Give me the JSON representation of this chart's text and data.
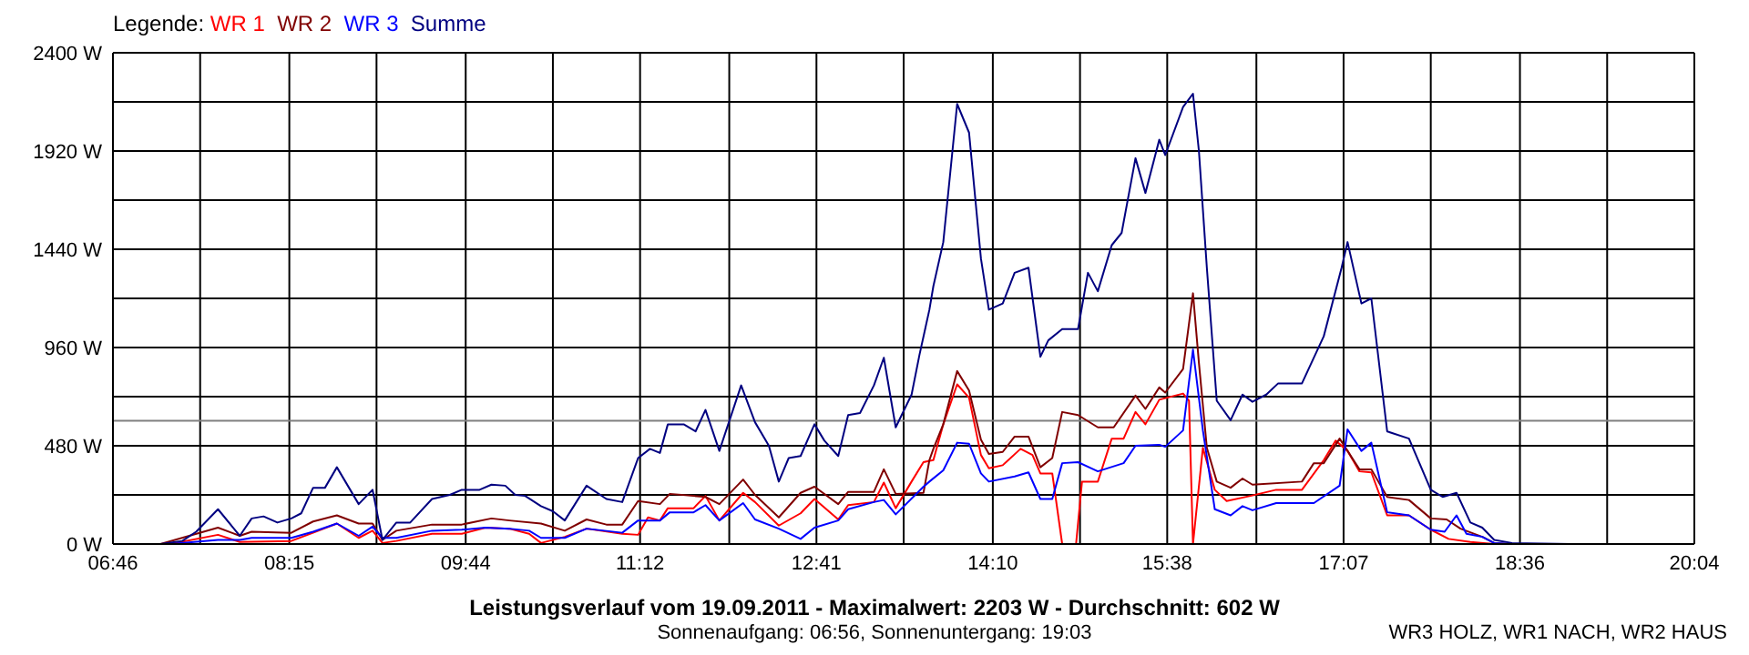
{
  "chart_data": {
    "type": "line",
    "title": "Leistungsverlauf vom 19.09.2011 - Maximalwert: 2203 W - Durchschnitt: 602 W",
    "subtitle": "Sonnenaufgang: 06:56, Sonnenuntergang: 19:03",
    "annotations": [
      "WR3 HOLZ, WR1 NACH, WR2 HAUS"
    ],
    "legend_title": "Legende:",
    "legend": "top left",
    "grid": true,
    "xlim": [
      "2011-09-19T06:46",
      "2011-09-19T20:04"
    ],
    "xticks": [
      {
        "value": "2011-09-19T06:46",
        "label": "06:46"
      },
      {
        "value": "2011-09-19T07:30",
        "label": null
      },
      {
        "value": "2011-09-19T08:15",
        "label": "08:15"
      },
      {
        "value": "2011-09-19T08:59",
        "label": null
      },
      {
        "value": "2011-09-19T09:44",
        "label": "09:44"
      },
      {
        "value": "2011-09-19T10:28",
        "label": null
      },
      {
        "value": "2011-09-19T11:12",
        "label": "11:12"
      },
      {
        "value": "2011-09-19T11:57",
        "label": null
      },
      {
        "value": "2011-09-19T12:41",
        "label": "12:41"
      },
      {
        "value": "2011-09-19T13:25",
        "label": null
      },
      {
        "value": "2011-09-19T14:10",
        "label": "14:10"
      },
      {
        "value": "2011-09-19T14:54",
        "label": null
      },
      {
        "value": "2011-09-19T15:38",
        "label": "15:38"
      },
      {
        "value": "2011-09-19T16:23",
        "label": null
      },
      {
        "value": "2011-09-19T17:07",
        "label": "17:07"
      },
      {
        "value": "2011-09-19T17:51",
        "label": null
      },
      {
        "value": "2011-09-19T18:36",
        "label": "18:36"
      },
      {
        "value": "2011-09-19T19:20",
        "label": null
      },
      {
        "value": "2011-09-19T20:04",
        "label": "20:04"
      }
    ],
    "ylim": [
      0,
      2400
    ],
    "yticks": [
      {
        "value": 0,
        "label": "0 W"
      },
      {
        "value": 240,
        "label": null
      },
      {
        "value": 480,
        "label": "480 W"
      },
      {
        "value": 720,
        "label": null
      },
      {
        "value": 960,
        "label": "960 W"
      },
      {
        "value": 1200,
        "label": null
      },
      {
        "value": 1440,
        "label": "1440 W"
      },
      {
        "value": 1680,
        "label": null
      },
      {
        "value": 1920,
        "label": "1920 W"
      },
      {
        "value": 2160,
        "label": null
      },
      {
        "value": 2400,
        "label": "2400 W"
      }
    ],
    "ref_lines": [
      {
        "axis": "y",
        "value": 602,
        "color": "#808080"
      }
    ],
    "series": [
      {
        "name": "WR 1",
        "color": "#ff0000",
        "x": [
          "2011-09-19T07:15",
          "2011-09-19T07:39",
          "2011-09-19T07:50",
          "2011-09-19T08:16",
          "2011-09-19T08:27",
          "2011-09-19T08:39",
          "2011-09-19T08:50",
          "2011-09-19T08:57",
          "2011-09-19T09:02",
          "2011-09-19T09:09",
          "2011-09-19T09:27",
          "2011-09-19T09:42",
          "2011-09-19T09:54",
          "2011-09-19T10:06",
          "2011-09-19T10:16",
          "2011-09-19T10:22",
          "2011-09-19T10:34",
          "2011-09-19T10:45",
          "2011-09-19T11:03",
          "2011-09-19T11:11",
          "2011-09-19T11:16",
          "2011-09-19T11:22",
          "2011-09-19T11:26",
          "2011-09-19T11:39",
          "2011-09-19T11:45",
          "2011-09-19T11:52",
          "2011-09-19T12:04",
          "2011-09-19T12:10",
          "2011-09-19T12:22",
          "2011-09-19T12:33",
          "2011-09-19T12:40",
          "2011-09-19T12:52",
          "2011-09-19T12:57",
          "2011-09-19T13:10",
          "2011-09-19T13:15",
          "2011-09-19T13:21",
          "2011-09-19T13:29",
          "2011-09-19T13:35",
          "2011-09-19T13:40",
          "2011-09-19T13:45",
          "2011-09-19T13:52",
          "2011-09-19T13:58",
          "2011-09-19T14:04",
          "2011-09-19T14:08",
          "2011-09-19T14:15",
          "2011-09-19T14:24",
          "2011-09-19T14:30",
          "2011-09-19T14:34",
          "2011-09-19T14:40",
          "2011-09-19T14:45",
          "2011-09-19T14:52",
          "2011-09-19T14:55",
          "2011-09-19T15:03",
          "2011-09-19T15:10",
          "2011-09-19T15:16",
          "2011-09-19T15:22",
          "2011-09-19T15:27",
          "2011-09-19T15:34",
          "2011-09-19T15:46",
          "2011-09-19T15:49",
          "2011-09-19T15:51",
          "2011-09-19T15:56",
          "2011-09-19T16:02",
          "2011-09-19T16:08",
          "2011-09-19T16:20",
          "2011-09-19T16:33",
          "2011-09-19T16:46",
          "2011-09-19T16:57",
          "2011-09-19T17:03",
          "2011-09-19T17:09",
          "2011-09-19T17:15",
          "2011-09-19T17:21",
          "2011-09-19T17:29",
          "2011-09-19T17:40",
          "2011-09-19T17:51",
          "2011-09-19T18:00",
          "2011-09-19T18:11",
          "2011-09-19T18:23"
        ],
        "values": [
          0,
          45,
          10,
          15,
          55,
          100,
          30,
          65,
          5,
          15,
          50,
          50,
          80,
          75,
          50,
          5,
          35,
          75,
          50,
          45,
          130,
          115,
          175,
          175,
          235,
          115,
          250,
          205,
          90,
          150,
          220,
          120,
          190,
          205,
          300,
          175,
          305,
          400,
          410,
          585,
          780,
          715,
          435,
          370,
          385,
          465,
          435,
          345,
          345,
          0,
          0,
          305,
          305,
          515,
          515,
          645,
          585,
          705,
          735,
          700,
          0,
          470,
          265,
          210,
          235,
          265,
          265,
          410,
          505,
          455,
          355,
          350,
          140,
          140,
          70,
          25,
          10,
          0
        ]
      },
      {
        "name": "WR 2",
        "color": "#800000",
        "x": [
          "2011-09-19T07:10",
          "2011-09-19T07:39",
          "2011-09-19T07:50",
          "2011-09-19T07:56",
          "2011-09-19T08:16",
          "2011-09-19T08:27",
          "2011-09-19T08:39",
          "2011-09-19T08:50",
          "2011-09-19T08:57",
          "2011-09-19T09:02",
          "2011-09-19T09:09",
          "2011-09-19T09:27",
          "2011-09-19T09:42",
          "2011-09-19T09:57",
          "2011-09-19T10:06",
          "2011-09-19T10:22",
          "2011-09-19T10:34",
          "2011-09-19T10:45",
          "2011-09-19T10:55",
          "2011-09-19T11:03",
          "2011-09-19T11:11",
          "2011-09-19T11:22",
          "2011-09-19T11:27",
          "2011-09-19T11:45",
          "2011-09-19T11:52",
          "2011-09-19T12:04",
          "2011-09-19T12:10",
          "2011-09-19T12:22",
          "2011-09-19T12:33",
          "2011-09-19T12:40",
          "2011-09-19T12:52",
          "2011-09-19T12:57",
          "2011-09-19T13:10",
          "2011-09-19T13:15",
          "2011-09-19T13:21",
          "2011-09-19T13:35",
          "2011-09-19T13:38",
          "2011-09-19T13:40",
          "2011-09-19T13:45",
          "2011-09-19T13:52",
          "2011-09-19T13:58",
          "2011-09-19T14:04",
          "2011-09-19T14:08",
          "2011-09-19T14:15",
          "2011-09-19T14:21",
          "2011-09-19T14:28",
          "2011-09-19T14:34",
          "2011-09-19T14:40",
          "2011-09-19T14:45",
          "2011-09-19T14:53",
          "2011-09-19T15:03",
          "2011-09-19T15:11",
          "2011-09-19T15:22",
          "2011-09-19T15:27",
          "2011-09-19T15:34",
          "2011-09-19T15:37",
          "2011-09-19T15:46",
          "2011-09-19T15:51",
          "2011-09-19T15:54",
          "2011-09-19T15:58",
          "2011-09-19T16:03",
          "2011-09-19T16:10",
          "2011-09-19T16:16",
          "2011-09-19T16:21",
          "2011-09-19T16:46",
          "2011-09-19T16:52",
          "2011-09-19T16:57",
          "2011-09-19T17:05",
          "2011-09-19T17:09",
          "2011-09-19T17:15",
          "2011-09-19T17:21",
          "2011-09-19T17:29",
          "2011-09-19T17:40",
          "2011-09-19T17:51",
          "2011-09-19T17:59",
          "2011-09-19T18:06",
          "2011-09-19T18:17",
          "2011-09-19T18:23",
          "2011-09-19T18:32"
        ],
        "values": [
          0,
          80,
          40,
          60,
          55,
          110,
          140,
          100,
          100,
          20,
          65,
          95,
          95,
          125,
          115,
          100,
          65,
          120,
          95,
          95,
          210,
          195,
          245,
          230,
          195,
          315,
          240,
          130,
          250,
          280,
          195,
          255,
          255,
          365,
          245,
          250,
          410,
          465,
          585,
          845,
          750,
          510,
          440,
          450,
          525,
          525,
          375,
          420,
          645,
          630,
          570,
          570,
          725,
          660,
          765,
          740,
          855,
          1225,
          885,
          470,
          305,
          275,
          320,
          290,
          305,
          395,
          395,
          515,
          455,
          365,
          365,
          230,
          215,
          125,
          120,
          75,
          35,
          5,
          0
        ]
      },
      {
        "name": "WR 3",
        "color": "#0000ff",
        "x": [
          "2011-09-19T07:15",
          "2011-09-19T07:39",
          "2011-09-19T07:50",
          "2011-09-19T07:56",
          "2011-09-19T08:16",
          "2011-09-19T08:27",
          "2011-09-19T08:39",
          "2011-09-19T08:50",
          "2011-09-19T08:57",
          "2011-09-19T09:02",
          "2011-09-19T09:09",
          "2011-09-19T09:27",
          "2011-09-19T09:42",
          "2011-09-19T09:54",
          "2011-09-19T10:06",
          "2011-09-19T10:16",
          "2011-09-19T10:22",
          "2011-09-19T10:34",
          "2011-09-19T10:45",
          "2011-09-19T11:03",
          "2011-09-19T11:11",
          "2011-09-19T11:22",
          "2011-09-19T11:27",
          "2011-09-19T11:39",
          "2011-09-19T11:45",
          "2011-09-19T11:52",
          "2011-09-19T12:04",
          "2011-09-19T12:10",
          "2011-09-19T12:22",
          "2011-09-19T12:33",
          "2011-09-19T12:40",
          "2011-09-19T12:52",
          "2011-09-19T12:57",
          "2011-09-19T13:10",
          "2011-09-19T13:15",
          "2011-09-19T13:21",
          "2011-09-19T13:35",
          "2011-09-19T13:38",
          "2011-09-19T13:45",
          "2011-09-19T13:52",
          "2011-09-19T13:58",
          "2011-09-19T14:04",
          "2011-09-19T14:08",
          "2011-09-19T14:21",
          "2011-09-19T14:28",
          "2011-09-19T14:34",
          "2011-09-19T14:40",
          "2011-09-19T14:45",
          "2011-09-19T14:53",
          "2011-09-19T15:03",
          "2011-09-19T15:16",
          "2011-09-19T15:22",
          "2011-09-19T15:34",
          "2011-09-19T15:37",
          "2011-09-19T15:46",
          "2011-09-19T15:51",
          "2011-09-19T15:56",
          "2011-09-19T16:02",
          "2011-09-19T16:10",
          "2011-09-19T16:16",
          "2011-09-19T16:21",
          "2011-09-19T16:33",
          "2011-09-19T16:52",
          "2011-09-19T17:05",
          "2011-09-19T17:09",
          "2011-09-19T17:16",
          "2011-09-19T17:21",
          "2011-09-19T17:29",
          "2011-09-19T17:40",
          "2011-09-19T17:51",
          "2011-09-19T17:58",
          "2011-09-19T18:04",
          "2011-09-19T18:09",
          "2011-09-19T18:17",
          "2011-09-19T18:23",
          "2011-09-19T18:32"
        ],
        "values": [
          0,
          20,
          20,
          30,
          30,
          60,
          100,
          40,
          85,
          30,
          30,
          65,
          70,
          80,
          75,
          65,
          30,
          30,
          75,
          55,
          115,
          115,
          155,
          155,
          190,
          115,
          200,
          120,
          75,
          25,
          80,
          115,
          170,
          205,
          215,
          145,
          280,
          305,
          360,
          495,
          490,
          345,
          305,
          330,
          350,
          220,
          220,
          395,
          400,
          355,
          395,
          480,
          485,
          475,
          555,
          950,
          555,
          170,
          140,
          185,
          165,
          200,
          200,
          285,
          560,
          455,
          495,
          155,
          140,
          70,
          60,
          140,
          50,
          35,
          5,
          0
        ]
      },
      {
        "name": "Summe",
        "color": "#000080",
        "x": [
          "2011-09-19T07:10",
          "2011-09-19T07:21",
          "2011-09-19T07:28",
          "2011-09-19T07:39",
          "2011-09-19T07:50",
          "2011-09-19T07:56",
          "2011-09-19T08:02",
          "2011-09-19T08:09",
          "2011-09-19T08:16",
          "2011-09-19T08:21",
          "2011-09-19T08:27",
          "2011-09-19T08:33",
          "2011-09-19T08:39",
          "2011-09-19T08:50",
          "2011-09-19T08:57",
          "2011-09-19T09:02",
          "2011-09-19T09:09",
          "2011-09-19T09:16",
          "2011-09-19T09:27",
          "2011-09-19T09:36",
          "2011-09-19T09:42",
          "2011-09-19T09:51",
          "2011-09-19T09:57",
          "2011-09-19T10:04",
          "2011-09-19T10:09",
          "2011-09-19T10:14",
          "2011-09-19T10:22",
          "2011-09-19T10:28",
          "2011-09-19T10:34",
          "2011-09-19T10:45",
          "2011-09-19T10:55",
          "2011-09-19T11:03",
          "2011-09-19T11:11",
          "2011-09-19T11:17",
          "2011-09-19T11:22",
          "2011-09-19T11:26",
          "2011-09-19T11:34",
          "2011-09-19T11:40",
          "2011-09-19T11:45",
          "2011-09-19T11:52",
          "2011-09-19T12:03",
          "2011-09-19T12:10",
          "2011-09-19T12:17",
          "2011-09-19T12:22",
          "2011-09-19T12:27",
          "2011-09-19T12:33",
          "2011-09-19T12:40",
          "2011-09-19T12:45",
          "2011-09-19T12:52",
          "2011-09-19T12:57",
          "2011-09-19T13:03",
          "2011-09-19T13:10",
          "2011-09-19T13:15",
          "2011-09-19T13:21",
          "2011-09-19T13:29",
          "2011-09-19T13:33",
          "2011-09-19T13:38",
          "2011-09-19T13:40",
          "2011-09-19T13:45",
          "2011-09-19T13:49",
          "2011-09-19T13:52",
          "2011-09-19T13:58",
          "2011-09-19T14:04",
          "2011-09-19T14:08",
          "2011-09-19T14:15",
          "2011-09-19T14:21",
          "2011-09-19T14:28",
          "2011-09-19T14:34",
          "2011-09-19T14:38",
          "2011-09-19T14:45",
          "2011-09-19T14:53",
          "2011-09-19T14:58",
          "2011-09-19T15:03",
          "2011-09-19T15:10",
          "2011-09-19T15:15",
          "2011-09-19T15:22",
          "2011-09-19T15:27",
          "2011-09-19T15:34",
          "2011-09-19T15:37",
          "2011-09-19T15:46",
          "2011-09-19T15:51",
          "2011-09-19T15:54",
          "2011-09-19T15:58",
          "2011-09-19T16:03",
          "2011-09-19T16:10",
          "2011-09-19T16:16",
          "2011-09-19T16:21",
          "2011-09-19T16:28",
          "2011-09-19T16:34",
          "2011-09-19T16:46",
          "2011-09-19T16:57",
          "2011-09-19T17:06",
          "2011-09-19T17:09",
          "2011-09-19T17:16",
          "2011-09-19T17:21",
          "2011-09-19T17:29",
          "2011-09-19T17:40",
          "2011-09-19T17:51",
          "2011-09-19T17:57",
          "2011-09-19T18:04",
          "2011-09-19T18:11",
          "2011-09-19T18:17",
          "2011-09-19T18:23",
          "2011-09-19T18:32",
          "2011-09-19T19:02"
        ],
        "values": [
          0,
          15,
          60,
          170,
          40,
          125,
          135,
          105,
          125,
          150,
          275,
          275,
          375,
          195,
          265,
          20,
          105,
          105,
          220,
          240,
          265,
          265,
          290,
          285,
          240,
          235,
          185,
          160,
          115,
          285,
          220,
          205,
          420,
          465,
          445,
          585,
          585,
          550,
          655,
          455,
          775,
          595,
          480,
          305,
          420,
          430,
          585,
          505,
          430,
          630,
          640,
          775,
          910,
          570,
          730,
          925,
          1145,
          1260,
          1475,
          1860,
          2150,
          2010,
          1395,
          1145,
          1175,
          1325,
          1350,
          915,
          995,
          1050,
          1050,
          1325,
          1235,
          1460,
          1520,
          1885,
          1715,
          1975,
          1900,
          2135,
          2200,
          1920,
          1350,
          700,
          605,
          730,
          695,
          730,
          785,
          785,
          1015,
          1350,
          1475,
          1175,
          1200,
          550,
          515,
          265,
          230,
          250,
          105,
          80,
          20,
          5,
          0
        ]
      }
    ]
  }
}
